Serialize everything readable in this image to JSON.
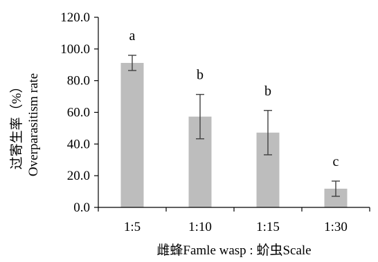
{
  "chart_data": {
    "type": "bar",
    "title": "",
    "categories": [
      "1:5",
      "1:10",
      "1:15",
      "1:30"
    ],
    "values": [
      91.2,
      57.3,
      47.2,
      11.8
    ],
    "errors": [
      4.8,
      14.0,
      14.0,
      4.8
    ],
    "significance_labels": [
      "a",
      "b",
      "b",
      "c"
    ],
    "xlabel": "雌蜂Famle wasp : 蚧虫Scale",
    "ylabel_line1": "过寄生率（%）",
    "ylabel_line2": "Overparasitism rate",
    "ylim": [
      0,
      120
    ],
    "yticks": [
      "0.0",
      "20.0",
      "40.0",
      "60.0",
      "80.0",
      "100.0",
      "120.0"
    ],
    "grid": false,
    "legend": "none",
    "bar_color": "#bdbdbd",
    "error_bar_color": "#404040",
    "axis_color": "#000000"
  }
}
